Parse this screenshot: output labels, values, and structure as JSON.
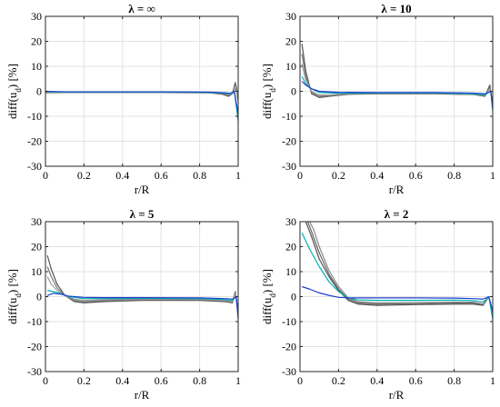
{
  "chart_data": [
    {
      "type": "line",
      "title": "λ = ∞",
      "xlabel": "r/R",
      "ylabel": "diff(u_d) [%]",
      "xlim": [
        0,
        1
      ],
      "ylim": [
        -30,
        30
      ],
      "xticks": [
        "0",
        "0.2",
        "0.4",
        "0.6",
        "0.8",
        "1"
      ],
      "yticks": [
        "-30",
        "-20",
        "-10",
        "0",
        "10",
        "20",
        "30"
      ],
      "grid": true,
      "series": [
        {
          "color": "#555555",
          "x": [
            0,
            0.1,
            0.3,
            0.6,
            0.85,
            0.92,
            0.95,
            0.97,
            0.985,
            1.0
          ],
          "y": [
            -0.6,
            -0.5,
            -0.5,
            -0.5,
            -0.6,
            -1.2,
            -2.0,
            -1.0,
            3.5,
            -4.0
          ]
        },
        {
          "color": "#777777",
          "x": [
            0,
            0.1,
            0.3,
            0.6,
            0.85,
            0.93,
            0.96,
            0.98,
            0.99,
            1.0
          ],
          "y": [
            -0.5,
            -0.5,
            -0.5,
            -0.5,
            -0.6,
            -1.0,
            -1.5,
            -0.5,
            2.0,
            -3.0
          ]
        },
        {
          "color": "#999999",
          "x": [
            0,
            0.1,
            0.3,
            0.6,
            0.85,
            0.94,
            0.97,
            0.99,
            1.0
          ],
          "y": [
            -0.4,
            -0.4,
            -0.4,
            -0.4,
            -0.5,
            -0.8,
            -1.0,
            0.5,
            -2.0
          ]
        },
        {
          "color": "#00b0b0",
          "x": [
            0,
            0.1,
            0.3,
            0.6,
            0.85,
            0.93,
            0.96,
            0.98,
            1.0
          ],
          "y": [
            -0.2,
            -0.3,
            -0.3,
            -0.3,
            -0.4,
            -0.8,
            -1.0,
            0.0,
            -12.0
          ]
        },
        {
          "color": "#1f3fcf",
          "x": [
            0,
            0.1,
            0.3,
            0.6,
            0.85,
            0.93,
            0.96,
            0.98,
            1.0
          ],
          "y": [
            0.0,
            -0.2,
            -0.2,
            -0.2,
            -0.3,
            -0.6,
            -0.8,
            0.0,
            -9.0
          ]
        }
      ]
    },
    {
      "type": "line",
      "title": "λ = 10",
      "xlabel": "r/R",
      "ylabel": "diff(u_d) [%]",
      "xlim": [
        0,
        1
      ],
      "ylim": [
        -30,
        30
      ],
      "xticks": [
        "0",
        "0.2",
        "0.4",
        "0.6",
        "0.8",
        "1"
      ],
      "yticks": [
        "-30",
        "-20",
        "-10",
        "0",
        "10",
        "20",
        "30"
      ],
      "grid": true,
      "series": [
        {
          "color": "#555555",
          "x": [
            0.01,
            0.03,
            0.06,
            0.1,
            0.15,
            0.25,
            0.4,
            0.7,
            0.9,
            0.96,
            0.985,
            1.0
          ],
          "y": [
            19.0,
            8.0,
            -1.0,
            -2.5,
            -2.0,
            -1.2,
            -1.0,
            -1.0,
            -1.3,
            -2.0,
            2.5,
            -6.0
          ]
        },
        {
          "color": "#777777",
          "x": [
            0.01,
            0.03,
            0.06,
            0.1,
            0.15,
            0.25,
            0.4,
            0.7,
            0.9,
            0.96,
            0.985,
            1.0
          ],
          "y": [
            15.0,
            6.0,
            -0.5,
            -2.0,
            -1.8,
            -1.0,
            -0.9,
            -0.9,
            -1.2,
            -1.8,
            1.5,
            -5.0
          ]
        },
        {
          "color": "#999999",
          "x": [
            0.01,
            0.03,
            0.06,
            0.1,
            0.15,
            0.25,
            0.4,
            0.7,
            0.9,
            0.96,
            0.985,
            1.0
          ],
          "y": [
            11.0,
            4.5,
            0.0,
            -1.5,
            -1.5,
            -0.9,
            -0.8,
            -0.8,
            -1.1,
            -1.6,
            1.0,
            -4.0
          ]
        },
        {
          "color": "#00b0b0",
          "x": [
            0.01,
            0.03,
            0.06,
            0.1,
            0.2,
            0.4,
            0.7,
            0.9,
            0.96,
            0.99,
            1.0
          ],
          "y": [
            6.0,
            3.0,
            1.0,
            -0.5,
            -0.8,
            -0.7,
            -0.7,
            -1.0,
            -1.4,
            0.0,
            -8.0
          ]
        },
        {
          "color": "#1f3fcf",
          "x": [
            0.01,
            0.03,
            0.06,
            0.1,
            0.2,
            0.4,
            0.7,
            0.9,
            0.96,
            0.99,
            1.0
          ],
          "y": [
            4.0,
            2.5,
            1.0,
            0.0,
            -0.4,
            -0.5,
            -0.5,
            -0.7,
            -1.0,
            0.0,
            -7.0
          ]
        }
      ]
    },
    {
      "type": "line",
      "title": "λ = 5",
      "xlabel": "r/R",
      "ylabel": "diff(u_d) [%]",
      "xlim": [
        0,
        1
      ],
      "ylim": [
        -30,
        30
      ],
      "xticks": [
        "0",
        "0.2",
        "0.4",
        "0.6",
        "0.8",
        "1"
      ],
      "yticks": [
        "-30",
        "-20",
        "-10",
        "0",
        "10",
        "20",
        "30"
      ],
      "grid": true,
      "series": [
        {
          "color": "#555555",
          "x": [
            0.01,
            0.03,
            0.06,
            0.1,
            0.15,
            0.2,
            0.3,
            0.5,
            0.8,
            0.93,
            0.97,
            0.985,
            1.0
          ],
          "y": [
            16.5,
            11.0,
            5.0,
            0.5,
            -2.0,
            -2.5,
            -2.0,
            -1.5,
            -1.5,
            -2.0,
            -2.5,
            2.0,
            -7.0
          ]
        },
        {
          "color": "#777777",
          "x": [
            0.01,
            0.03,
            0.06,
            0.1,
            0.15,
            0.2,
            0.3,
            0.5,
            0.8,
            0.93,
            0.97,
            0.985,
            1.0
          ],
          "y": [
            12.0,
            8.0,
            3.5,
            0.5,
            -1.5,
            -2.0,
            -1.6,
            -1.2,
            -1.2,
            -1.8,
            -2.2,
            1.5,
            -6.0
          ]
        },
        {
          "color": "#999999",
          "x": [
            0.01,
            0.03,
            0.06,
            0.1,
            0.15,
            0.2,
            0.3,
            0.5,
            0.8,
            0.93,
            0.97,
            0.985,
            1.0
          ],
          "y": [
            8.0,
            5.0,
            2.5,
            0.3,
            -1.0,
            -1.5,
            -1.2,
            -1.0,
            -1.0,
            -1.5,
            -2.0,
            1.0,
            -5.0
          ]
        },
        {
          "color": "#00b0b0",
          "x": [
            0.01,
            0.04,
            0.08,
            0.12,
            0.2,
            0.3,
            0.5,
            0.8,
            0.93,
            0.97,
            0.99,
            1.0
          ],
          "y": [
            2.5,
            2.0,
            1.2,
            0.0,
            -0.8,
            -0.8,
            -0.7,
            -0.8,
            -1.2,
            -1.5,
            0.0,
            -8.0
          ]
        },
        {
          "color": "#1f3fcf",
          "x": [
            0.01,
            0.04,
            0.08,
            0.12,
            0.2,
            0.3,
            0.5,
            0.8,
            0.93,
            0.97,
            0.99,
            1.0
          ],
          "y": [
            0.5,
            1.3,
            1.0,
            0.2,
            -0.3,
            -0.4,
            -0.4,
            -0.5,
            -0.8,
            -1.0,
            0.0,
            -9.0
          ]
        }
      ]
    },
    {
      "type": "line",
      "title": "λ = 2",
      "xlabel": "r/R",
      "ylabel": "diff(u_d) [%]",
      "xlim": [
        0,
        1
      ],
      "ylim": [
        -30,
        30
      ],
      "xticks": [
        "0",
        "0.2",
        "0.4",
        "0.6",
        "0.8",
        "1"
      ],
      "yticks": [
        "-30",
        "-20",
        "-10",
        "0",
        "10",
        "20",
        "30"
      ],
      "grid": true,
      "series": [
        {
          "color": "#555555",
          "x": [
            0.03,
            0.06,
            0.1,
            0.15,
            0.2,
            0.25,
            0.3,
            0.4,
            0.6,
            0.8,
            0.9,
            0.95,
            0.98,
            1.0
          ],
          "y": [
            30.0,
            24.0,
            15.0,
            8.0,
            2.5,
            -1.5,
            -3.0,
            -3.5,
            -3.2,
            -3.0,
            -3.0,
            -3.5,
            0.0,
            -8.0
          ]
        },
        {
          "color": "#666666",
          "x": [
            0.04,
            0.06,
            0.1,
            0.15,
            0.2,
            0.25,
            0.3,
            0.4,
            0.6,
            0.8,
            0.9,
            0.95,
            0.98,
            1.0
          ],
          "y": [
            30.0,
            26.0,
            17.5,
            9.0,
            3.0,
            -1.0,
            -2.5,
            -3.0,
            -2.8,
            -2.6,
            -2.6,
            -3.2,
            0.0,
            -7.0
          ]
        },
        {
          "color": "#888888",
          "x": [
            0.05,
            0.07,
            0.1,
            0.15,
            0.2,
            0.25,
            0.3,
            0.4,
            0.6,
            0.8,
            0.9,
            0.95,
            0.98,
            1.0
          ],
          "y": [
            30.0,
            27.0,
            20.0,
            10.5,
            4.0,
            -0.5,
            -2.0,
            -2.5,
            -2.4,
            -2.2,
            -2.2,
            -3.0,
            0.0,
            -7.0
          ]
        },
        {
          "color": "#00b0b0",
          "x": [
            0.01,
            0.05,
            0.1,
            0.15,
            0.2,
            0.25,
            0.3,
            0.4,
            0.6,
            0.8,
            0.9,
            0.95,
            0.98,
            1.0
          ],
          "y": [
            25.5,
            19.0,
            12.0,
            6.0,
            2.0,
            -0.5,
            -1.3,
            -1.5,
            -1.5,
            -1.4,
            -1.6,
            -2.2,
            0.0,
            -9.0
          ]
        },
        {
          "color": "#1f3fcf",
          "x": [
            0.01,
            0.05,
            0.1,
            0.15,
            0.2,
            0.25,
            0.3,
            0.4,
            0.6,
            0.8,
            0.9,
            0.95,
            0.98,
            1.0
          ],
          "y": [
            4.0,
            3.0,
            1.5,
            0.5,
            -0.3,
            -0.5,
            -0.5,
            -0.5,
            -0.5,
            -0.6,
            -0.8,
            -1.0,
            0.0,
            -6.0
          ]
        }
      ]
    }
  ]
}
